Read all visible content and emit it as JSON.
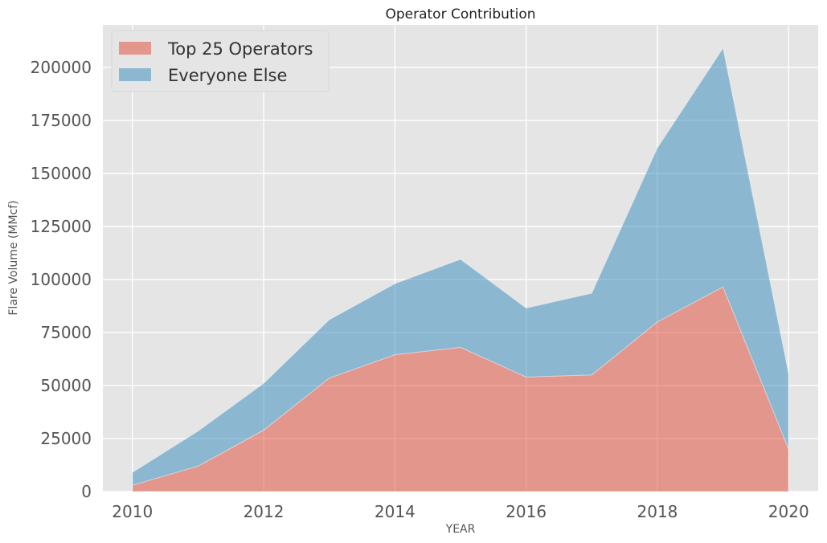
{
  "chart_data": {
    "type": "area",
    "stacked": true,
    "title": "Operator Contribution",
    "xlabel": "YEAR",
    "ylabel": "Flare Volume (MMcf)",
    "x": [
      2010,
      2011,
      2012,
      2013,
      2014,
      2015,
      2016,
      2017,
      2018,
      2019,
      2020
    ],
    "series": [
      {
        "name": "Top 25 Operators",
        "color": "#e24a33",
        "values": [
          3000,
          12000,
          29000,
          53500,
          64500,
          68000,
          54000,
          55000,
          80000,
          96500,
          20000
        ]
      },
      {
        "name": "Everyone Else",
        "color": "#348abd",
        "values": [
          6000,
          16500,
          22000,
          27500,
          33500,
          41500,
          32500,
          38500,
          82000,
          112500,
          35500
        ]
      }
    ],
    "xlim": [
      2009.55,
      2020.45
    ],
    "ylim": [
      0,
      220000
    ],
    "xticks": [
      "2010",
      "2012",
      "2014",
      "2016",
      "2018",
      "2020"
    ],
    "yticks": [
      "0",
      "25000",
      "50000",
      "75000",
      "100000",
      "125000",
      "150000",
      "175000",
      "200000"
    ],
    "grid": true,
    "legend_position": "top-left",
    "background_color": "#e5e5e5"
  }
}
